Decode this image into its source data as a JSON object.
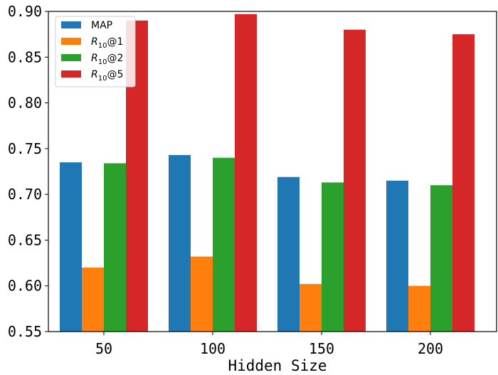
{
  "chart_data": {
    "type": "bar",
    "xlabel": "Hidden Size",
    "ylabel": "",
    "categories": [
      "50",
      "100",
      "150",
      "200"
    ],
    "ylim": [
      0.55,
      0.9
    ],
    "yticks": [
      "0.55",
      "0.60",
      "0.65",
      "0.70",
      "0.75",
      "0.80",
      "0.85",
      "0.90"
    ],
    "legend_position": "top-left",
    "grid": false,
    "series": [
      {
        "name": "MAP",
        "name_main": "MAP",
        "name_sub": "",
        "name_suffix": "",
        "color": "#1f77b4",
        "values": [
          0.735,
          0.743,
          0.719,
          0.715
        ]
      },
      {
        "name": "R10@1",
        "name_main": "R",
        "name_sub": "10",
        "name_suffix": "@1",
        "color": "#ff7f0e",
        "values": [
          0.62,
          0.632,
          0.602,
          0.6
        ]
      },
      {
        "name": "R10@2",
        "name_main": "R",
        "name_sub": "10",
        "name_suffix": "@2",
        "color": "#2ca02c",
        "values": [
          0.734,
          0.74,
          0.713,
          0.71
        ]
      },
      {
        "name": "R10@5",
        "name_main": "R",
        "name_sub": "10",
        "name_suffix": "@5",
        "color": "#d62728",
        "values": [
          0.89,
          0.897,
          0.88,
          0.875
        ]
      }
    ]
  }
}
